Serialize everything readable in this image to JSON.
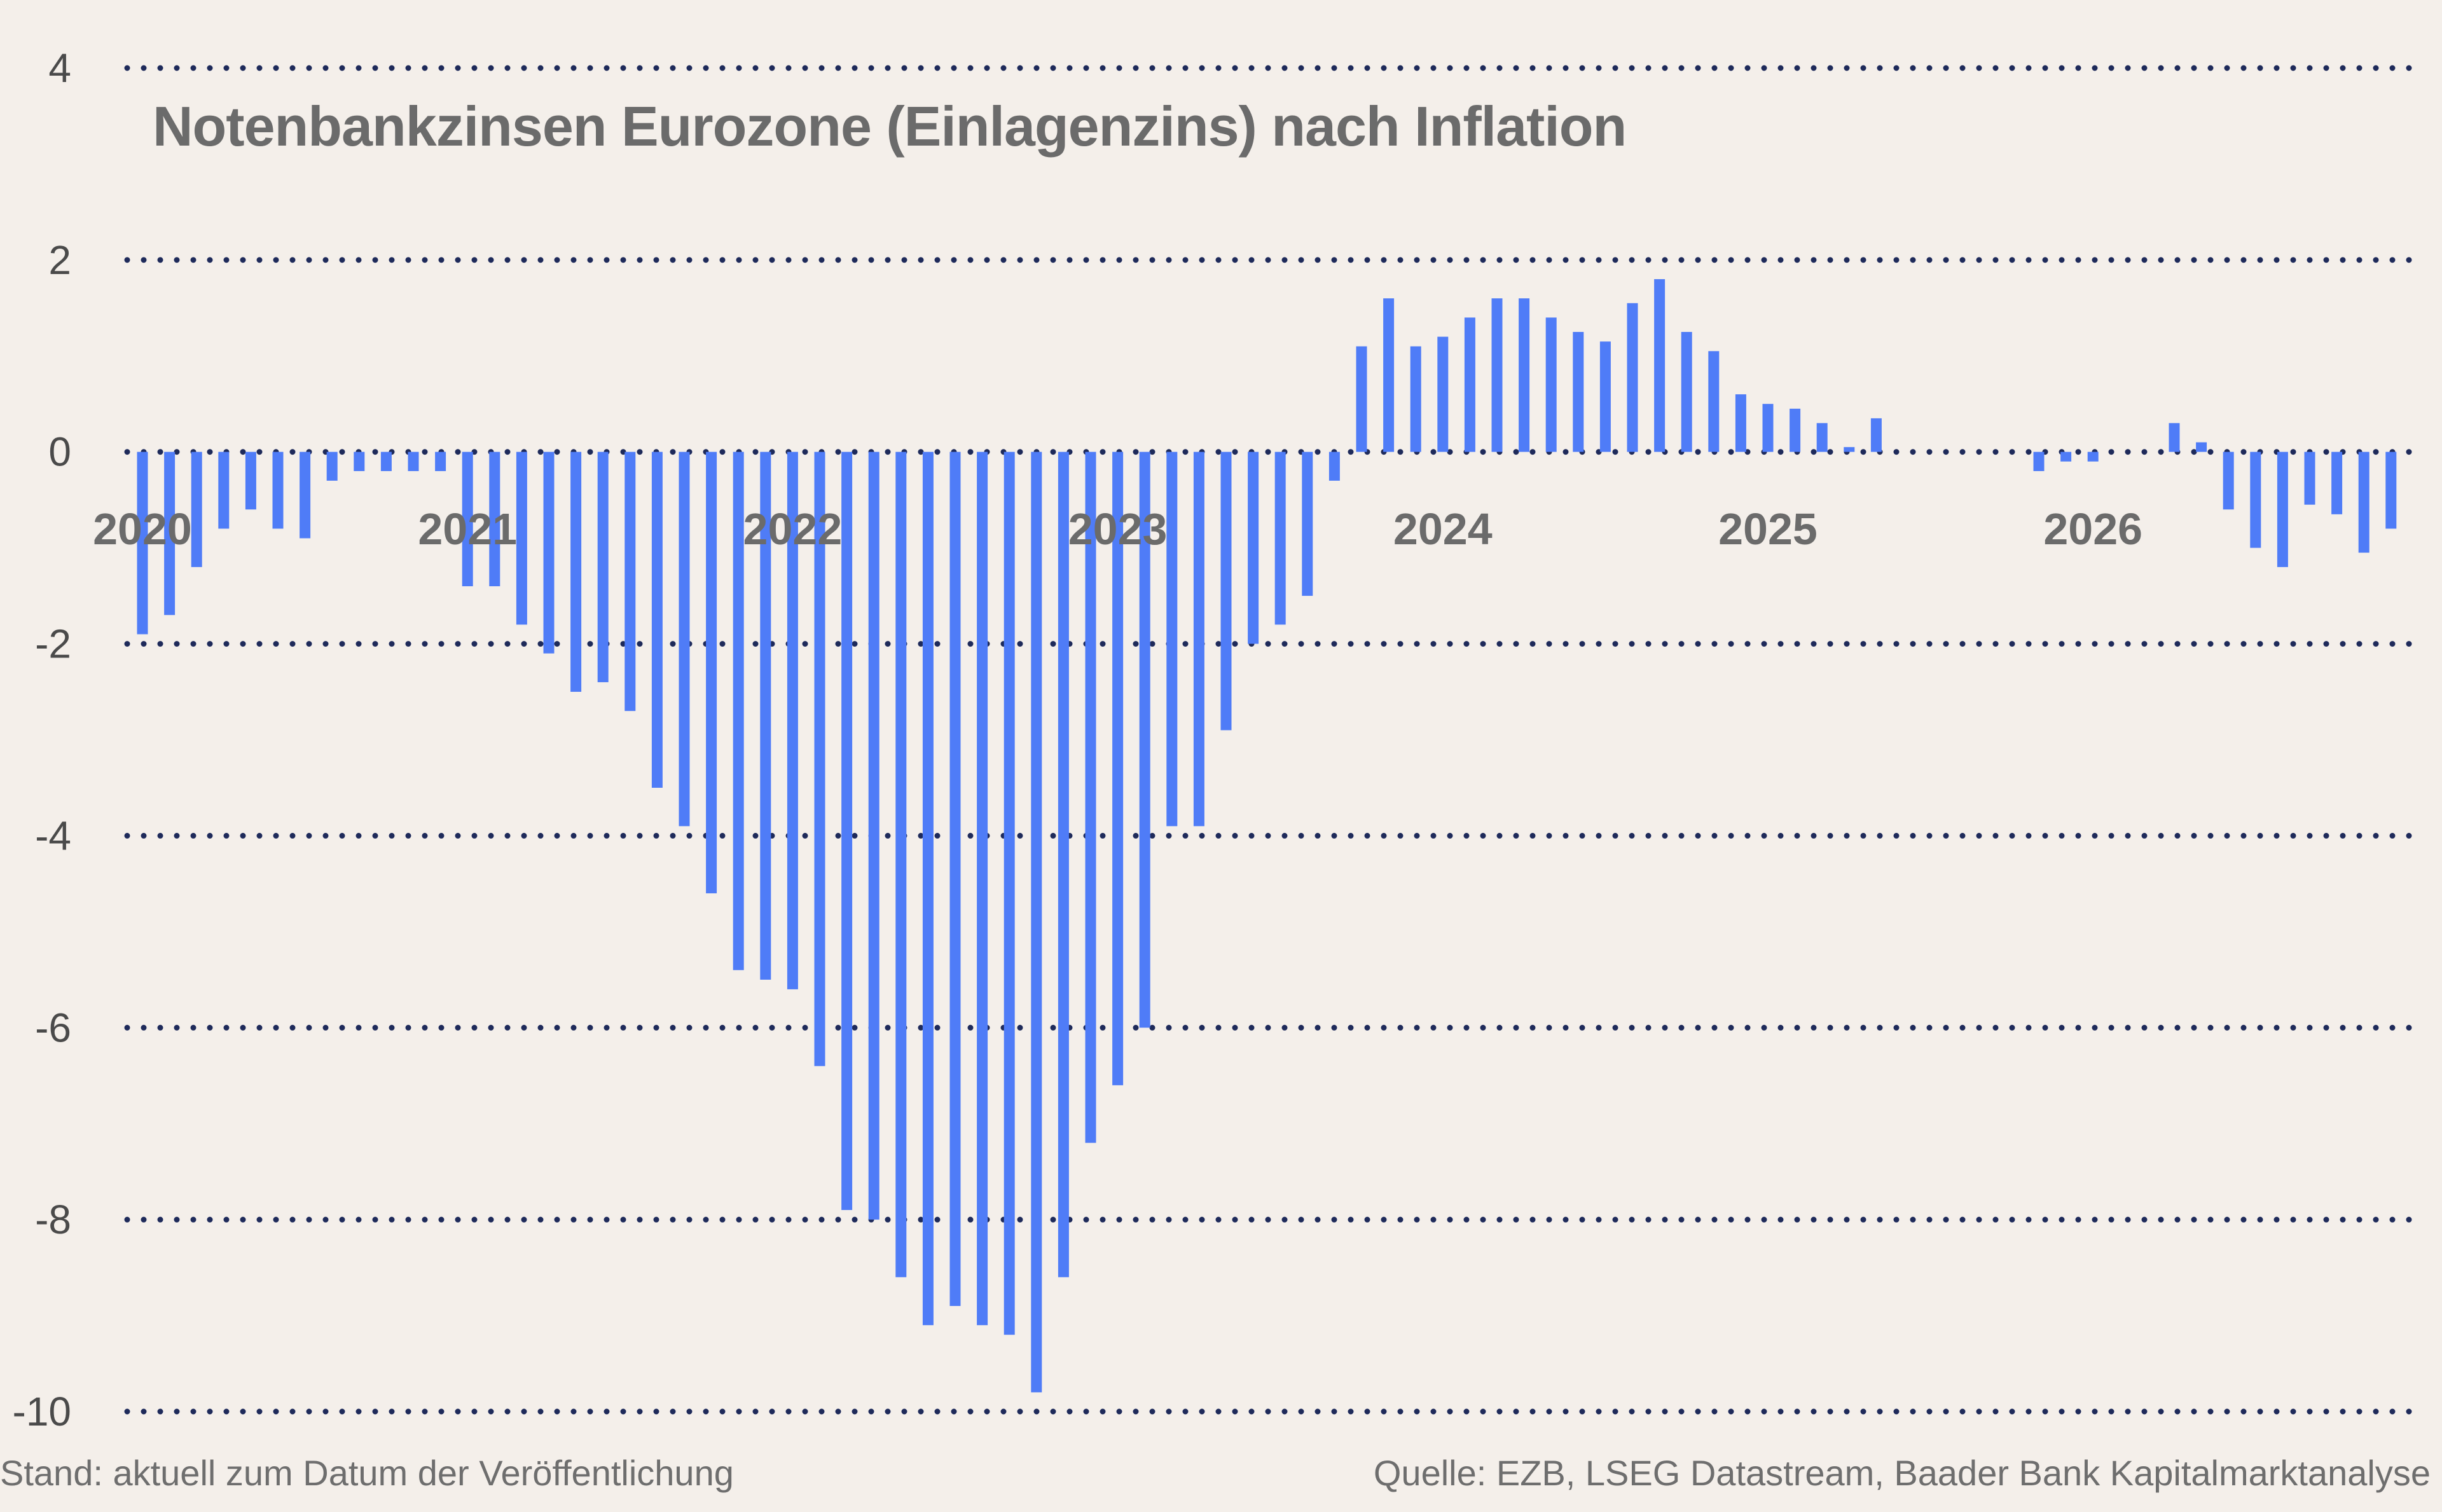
{
  "chart_data": {
    "type": "bar",
    "title": "Notenbankzinsen Eurozone (Einlagenzins) nach Inflation",
    "xlabel": "",
    "ylabel": "",
    "ylim": [
      -10,
      4
    ],
    "yticks": [
      4,
      2,
      0,
      -2,
      -4,
      -6,
      -8,
      -10
    ],
    "xticks": [
      "2020",
      "2021",
      "2022",
      "2023",
      "2024",
      "2025",
      "2026"
    ],
    "grid": true,
    "bar_color": "#4f7cf7",
    "grid_color": "#1e2a5a",
    "values": [
      -1.9,
      -1.7,
      -1.2,
      -0.8,
      -0.6,
      -0.8,
      -0.9,
      -0.3,
      -0.2,
      -0.2,
      -0.2,
      -0.2,
      -1.4,
      -1.4,
      -1.8,
      -2.1,
      -2.5,
      -2.4,
      -2.7,
      -3.5,
      -3.9,
      -4.6,
      -5.4,
      -5.5,
      -5.6,
      -6.4,
      -7.9,
      -8.0,
      -8.6,
      -9.1,
      -8.9,
      -9.1,
      -9.2,
      -9.8,
      -8.6,
      -7.2,
      -6.6,
      -6.0,
      -3.9,
      -3.9,
      -2.9,
      -2.0,
      -1.8,
      -1.5,
      -0.3,
      1.1,
      1.6,
      1.1,
      1.2,
      1.4,
      1.6,
      1.6,
      1.4,
      1.25,
      1.15,
      1.55,
      1.8,
      1.25,
      1.05,
      0.6,
      0.5,
      0.45,
      0.3,
      0.05,
      0.35,
      0,
      0,
      0,
      0,
      0,
      -0.2,
      -0.1,
      -0.1,
      0,
      0,
      0.3,
      0.1,
      -0.6,
      -1.0,
      -1.2,
      -0.55,
      -0.65,
      -1.05,
      -0.8
    ]
  },
  "footer": {
    "left": "Stand: aktuell zum Datum der Veröffentlichung",
    "right": "Quelle: EZB, LSEG Datastream, Baader Bank Kapitalmarktanalyse"
  }
}
